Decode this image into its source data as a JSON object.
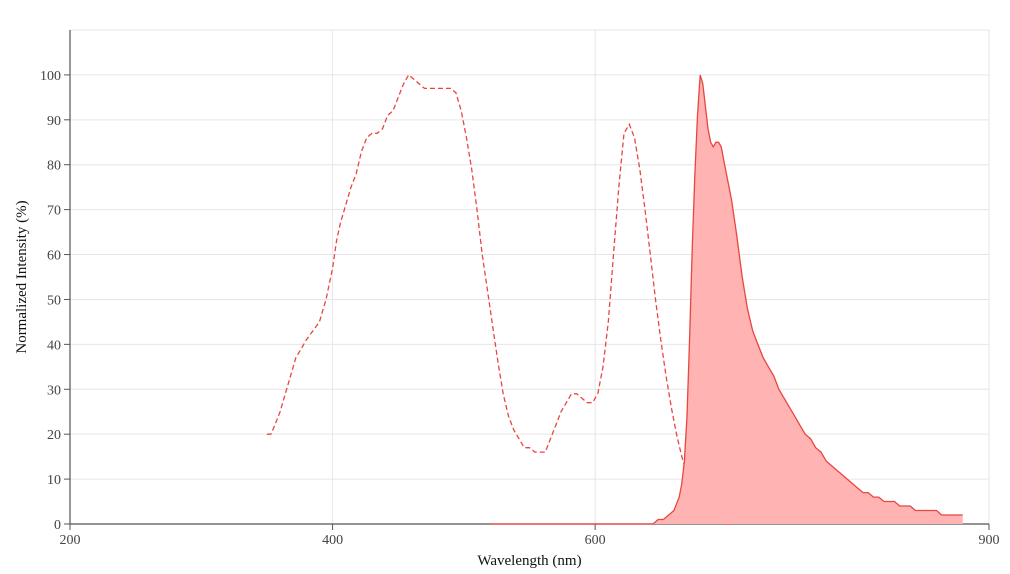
{
  "chart_data": {
    "type": "area",
    "xlabel": "Wavelength (nm)",
    "ylabel": "Normalized Intensity (%)",
    "xlim": [
      200,
      900
    ],
    "ylim": [
      0,
      110
    ],
    "x_ticks": [
      200,
      400,
      600,
      900
    ],
    "y_ticks": [
      0,
      10,
      20,
      30,
      40,
      50,
      60,
      70,
      80,
      90,
      100
    ],
    "grid": true,
    "legend": "none",
    "series": [
      {
        "style": "dashed-line",
        "color": "#e8463f",
        "x": [
          350,
          353,
          356,
          360,
          364,
          368,
          372,
          376,
          380,
          385,
          390,
          395,
          400,
          403,
          406,
          410,
          414,
          418,
          422,
          426,
          430,
          434,
          438,
          442,
          446,
          450,
          454,
          458,
          462,
          466,
          470,
          474,
          478,
          482,
          486,
          490,
          494,
          498,
          502,
          506,
          510,
          514,
          518,
          522,
          526,
          530,
          534,
          538,
          542,
          546,
          550,
          554,
          558,
          562,
          566,
          570,
          574,
          578,
          582,
          586,
          590,
          594,
          598,
          602,
          606,
          610,
          614,
          618,
          622,
          626,
          630,
          634,
          638,
          642,
          646,
          650,
          654,
          658,
          662,
          666,
          670,
          674,
          678,
          682,
          686,
          690,
          694,
          698,
          702,
          704
        ],
        "y": [
          20,
          20,
          22,
          25,
          29,
          33,
          37,
          39,
          41,
          43,
          45,
          50,
          57,
          63,
          67,
          71,
          75,
          78,
          83,
          86,
          87,
          87,
          88,
          91,
          92,
          95,
          98,
          100,
          99,
          98,
          97,
          97,
          97,
          97,
          97,
          97,
          96,
          92,
          86,
          79,
          70,
          60,
          52,
          44,
          36,
          29,
          24,
          21,
          19,
          17,
          17,
          16,
          16,
          16,
          19,
          22,
          25,
          27,
          29,
          29,
          28,
          27,
          27,
          29,
          35,
          45,
          60,
          75,
          87,
          89,
          86,
          79,
          70,
          60,
          50,
          41,
          33,
          26,
          20,
          15,
          11,
          8,
          5,
          3,
          2,
          1,
          1,
          0,
          0,
          0
        ]
      },
      {
        "style": "filled-area",
        "color": "#e8463f",
        "fill": "#ffb3b3",
        "x": [
          520,
          560,
          600,
          610,
          620,
          630,
          640,
          644,
          648,
          652,
          656,
          660,
          664,
          666,
          668,
          670,
          672,
          674,
          676,
          678,
          680,
          682,
          684,
          686,
          688,
          690,
          692,
          694,
          696,
          698,
          700,
          704,
          708,
          712,
          716,
          720,
          724,
          728,
          732,
          736,
          740,
          744,
          748,
          752,
          756,
          760,
          764,
          768,
          772,
          776,
          780,
          784,
          788,
          792,
          796,
          800,
          804,
          808,
          812,
          816,
          820,
          824,
          828,
          832,
          836,
          840,
          844,
          848,
          852,
          856,
          860,
          864,
          868,
          872,
          876,
          880
        ],
        "y": [
          0,
          0,
          0,
          0,
          0,
          0,
          0,
          0,
          1,
          1,
          2,
          3,
          6,
          9,
          14,
          24,
          42,
          62,
          78,
          91,
          100,
          98,
          93,
          88,
          85,
          84,
          85,
          85,
          84,
          81,
          78,
          72,
          64,
          55,
          48,
          43,
          40,
          37,
          35,
          33,
          30,
          28,
          26,
          24,
          22,
          20,
          19,
          17,
          16,
          14,
          13,
          12,
          11,
          10,
          9,
          8,
          7,
          7,
          6,
          6,
          5,
          5,
          5,
          4,
          4,
          4,
          3,
          3,
          3,
          3,
          3,
          2,
          2,
          2,
          2,
          2
        ]
      }
    ]
  }
}
